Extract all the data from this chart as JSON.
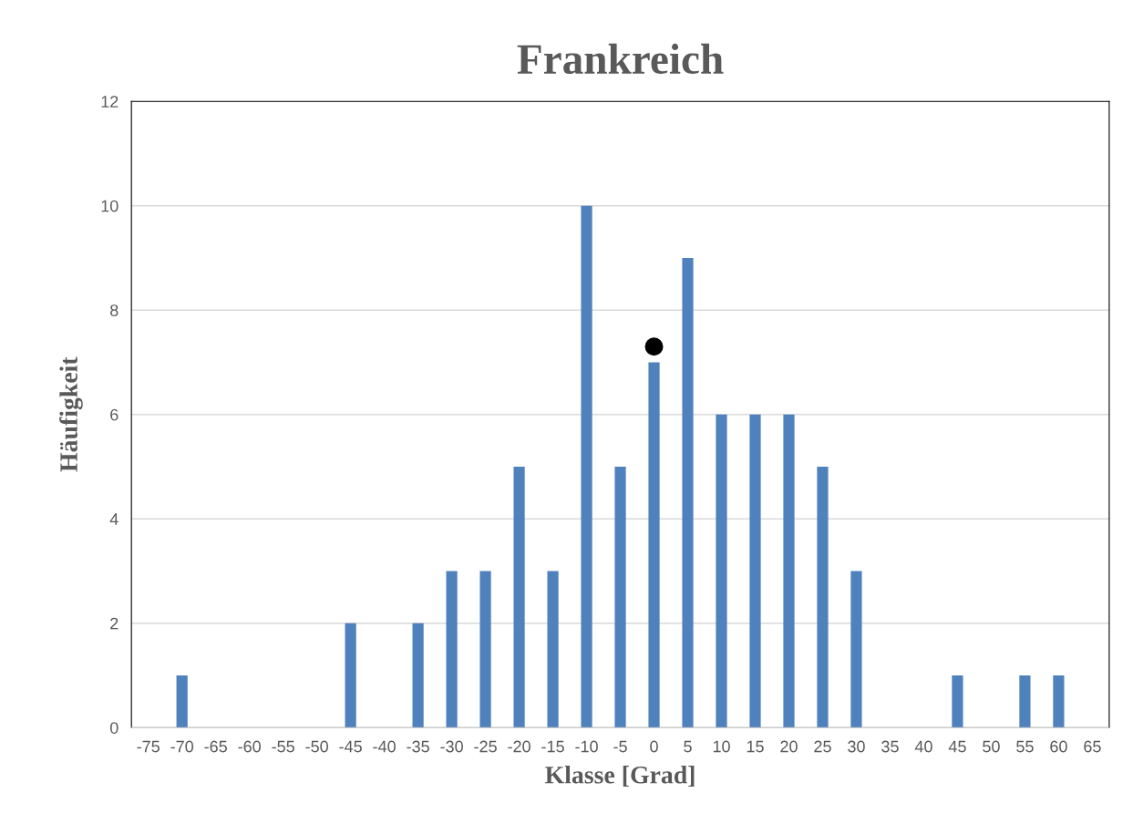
{
  "chart_data": {
    "type": "bar",
    "title": "Frankreich",
    "xlabel": "Klasse [Grad]",
    "ylabel": "Häufigkeit",
    "categories": [
      "-75",
      "-70",
      "-65",
      "-60",
      "-55",
      "-50",
      "-45",
      "-40",
      "-35",
      "-30",
      "-25",
      "-20",
      "-15",
      "-10",
      "-5",
      "0",
      "5",
      "10",
      "15",
      "20",
      "25",
      "30",
      "35",
      "40",
      "45",
      "50",
      "55",
      "60",
      "65"
    ],
    "series": [
      {
        "color": "#4f81bd",
        "values": [
          0,
          1,
          0,
          0,
          0,
          0,
          2,
          0,
          2,
          3,
          3,
          5,
          3,
          10,
          5,
          7,
          9,
          6,
          6,
          6,
          5,
          3,
          0,
          0,
          1,
          0,
          1,
          1,
          0
        ]
      },
      {
        "type": "scatter",
        "color": "#000000",
        "marker": "circle",
        "x": [
          "0"
        ],
        "values": [
          7.3
        ]
      }
    ],
    "ylim": [
      0,
      12
    ],
    "yticks": [
      0,
      2,
      4,
      6,
      8,
      10,
      12
    ],
    "grid": "y"
  }
}
